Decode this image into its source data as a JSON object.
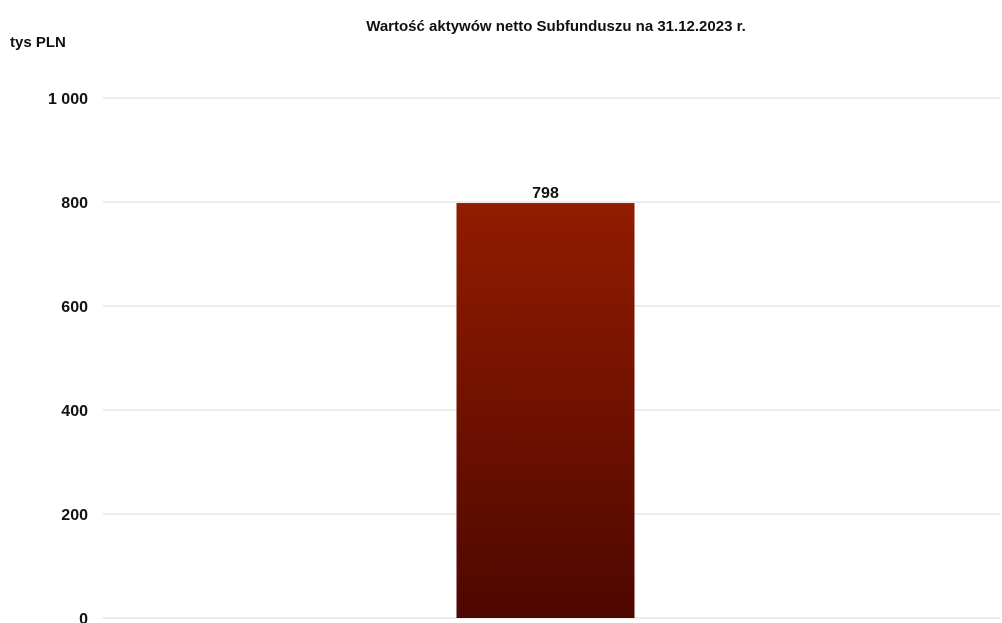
{
  "chart_data": {
    "type": "bar",
    "title": "Wartość aktywów netto Subfunduszu na 31.12.2023 r.",
    "ylabel": "tys PLN",
    "xlabel": "",
    "categories": [
      ""
    ],
    "values": [
      798
    ],
    "data_labels": [
      "798"
    ],
    "ylim": [
      0,
      1000
    ],
    "yticks": [
      0,
      200,
      400,
      600,
      800,
      1000
    ],
    "ytick_labels": [
      "0",
      "200",
      "400",
      "600",
      "800",
      "1 000"
    ],
    "grid": true,
    "legend": "none",
    "colors": {
      "bar_top": "#921c00",
      "bar_bottom": "#4e0700",
      "grid": "#d9d9d9"
    }
  }
}
